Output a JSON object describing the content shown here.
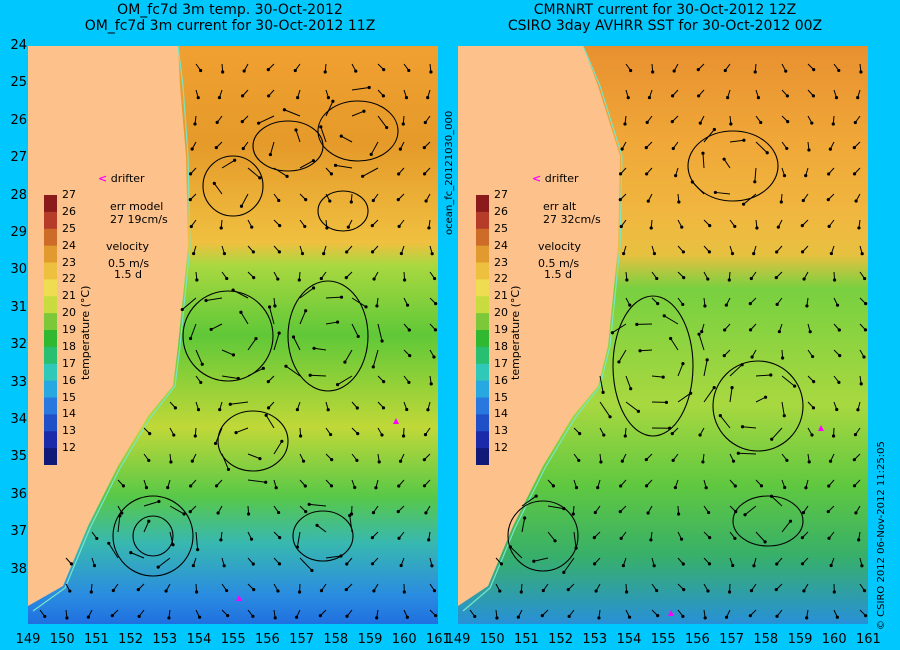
{
  "left": {
    "title1": "OM_fc7d 3m temp. 30-Oct-2012",
    "title2": "OM_fc7d 3m current for 30-Oct-2012 11Z",
    "err_line1": "err model",
    "err_line2": "27 19cm/s",
    "vel_title": "velocity",
    "vel_line1": "0.5 m/s",
    "vel_line2": "1.5 d",
    "cbar_label": "temperature (°C)"
  },
  "right": {
    "title1": "CMRNRT current for 30-Oct-2012 12Z",
    "title2": "CSIRO 3day AVHRR SST for 30-Oct-2012 00Z",
    "err_line1": "err alt",
    "err_line2": "27 32cm/s",
    "vel_title": "velocity",
    "vel_line1": "0.5 m/s",
    "vel_line2": "1.5 d",
    "cbar_label": "temperature (°C)"
  },
  "drifter_label": "drifter",
  "side_text_left": "ocean_fc_20121030_000",
  "side_text_right": "© CSIRO 2012   06-Nov-2012 11:25:05",
  "lat_ticks": [
    "24",
    "25",
    "26",
    "27",
    "28",
    "29",
    "30",
    "31",
    "32",
    "33",
    "34",
    "35",
    "36",
    "37",
    "38"
  ],
  "lon_ticks": [
    "149",
    "150",
    "151",
    "152",
    "153",
    "154",
    "155",
    "156",
    "157",
    "158",
    "159",
    "160",
    "161"
  ],
  "cbar_ticks": [
    "27",
    "26",
    "25",
    "24",
    "23",
    "22",
    "21",
    "20",
    "19",
    "18",
    "17",
    "16",
    "15",
    "14",
    "13",
    "12"
  ],
  "colors": {
    "background": "#00c8ff",
    "land": "#fdc28c",
    "coast_line": "#78e6c8",
    "drifter": "#ff00ff",
    "vectors": "#000000"
  }
}
